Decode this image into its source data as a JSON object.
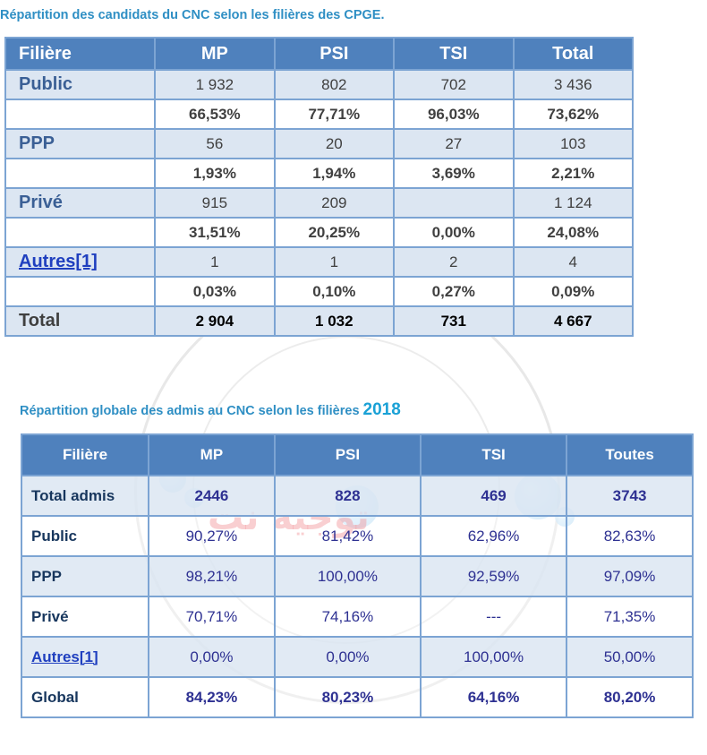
{
  "title1": "Répartition des candidats du CNC selon les filières des CPGE.",
  "table1": {
    "headers": [
      "Filière",
      "MP",
      "PSI",
      "TSI",
      "Total"
    ],
    "rows": [
      {
        "label": "Public",
        "values": [
          "1 932",
          "802",
          "702",
          "3 436"
        ]
      },
      {
        "label": "",
        "values": [
          "66,53%",
          "77,71%",
          "96,03%",
          "73,62%"
        ]
      },
      {
        "label": "PPP",
        "values": [
          "56",
          "20",
          "27",
          "103"
        ]
      },
      {
        "label": "",
        "values": [
          "1,93%",
          "1,94%",
          "3,69%",
          "2,21%"
        ]
      },
      {
        "label": "Privé",
        "values": [
          "915",
          "209",
          "",
          "1 124"
        ]
      },
      {
        "label": "",
        "values": [
          "31,51%",
          "20,25%",
          "0,00%",
          "24,08%"
        ]
      },
      {
        "label": "Autres[1]",
        "values": [
          "1",
          "1",
          "2",
          "4"
        ]
      },
      {
        "label": "",
        "values": [
          "0,03%",
          "0,10%",
          "0,27%",
          "0,09%"
        ]
      },
      {
        "label": "Total",
        "values": [
          "2 904",
          "1 032",
          "731",
          "4 667"
        ]
      }
    ]
  },
  "title2": {
    "text": "Répartition globale des admis au CNC selon les filières",
    "year": "2018"
  },
  "table2": {
    "headers": [
      "Filière",
      "MP",
      "PSI",
      "TSI",
      "Toutes"
    ],
    "rows": [
      {
        "label": "Total admis",
        "values": [
          "2446",
          "828",
          "469",
          "3743"
        ]
      },
      {
        "label": "Public",
        "values": [
          "90,27%",
          "81,42%",
          "62,96%",
          "82,63%"
        ]
      },
      {
        "label": "PPP",
        "values": [
          "98,21%",
          "100,00%",
          "92,59%",
          "97,09%"
        ]
      },
      {
        "label": "Privé",
        "values": [
          "70,71%",
          "74,16%",
          "---",
          "71,35%"
        ]
      },
      {
        "label": "Autres[1]",
        "values": [
          "0,00%",
          "0,00%",
          "100,00%",
          "50,00%"
        ]
      },
      {
        "label": "Global",
        "values": [
          "84,23%",
          "80,23%",
          "64,16%",
          "80,20%"
        ]
      }
    ]
  },
  "watermark": {
    "text": "توجيه نت"
  }
}
